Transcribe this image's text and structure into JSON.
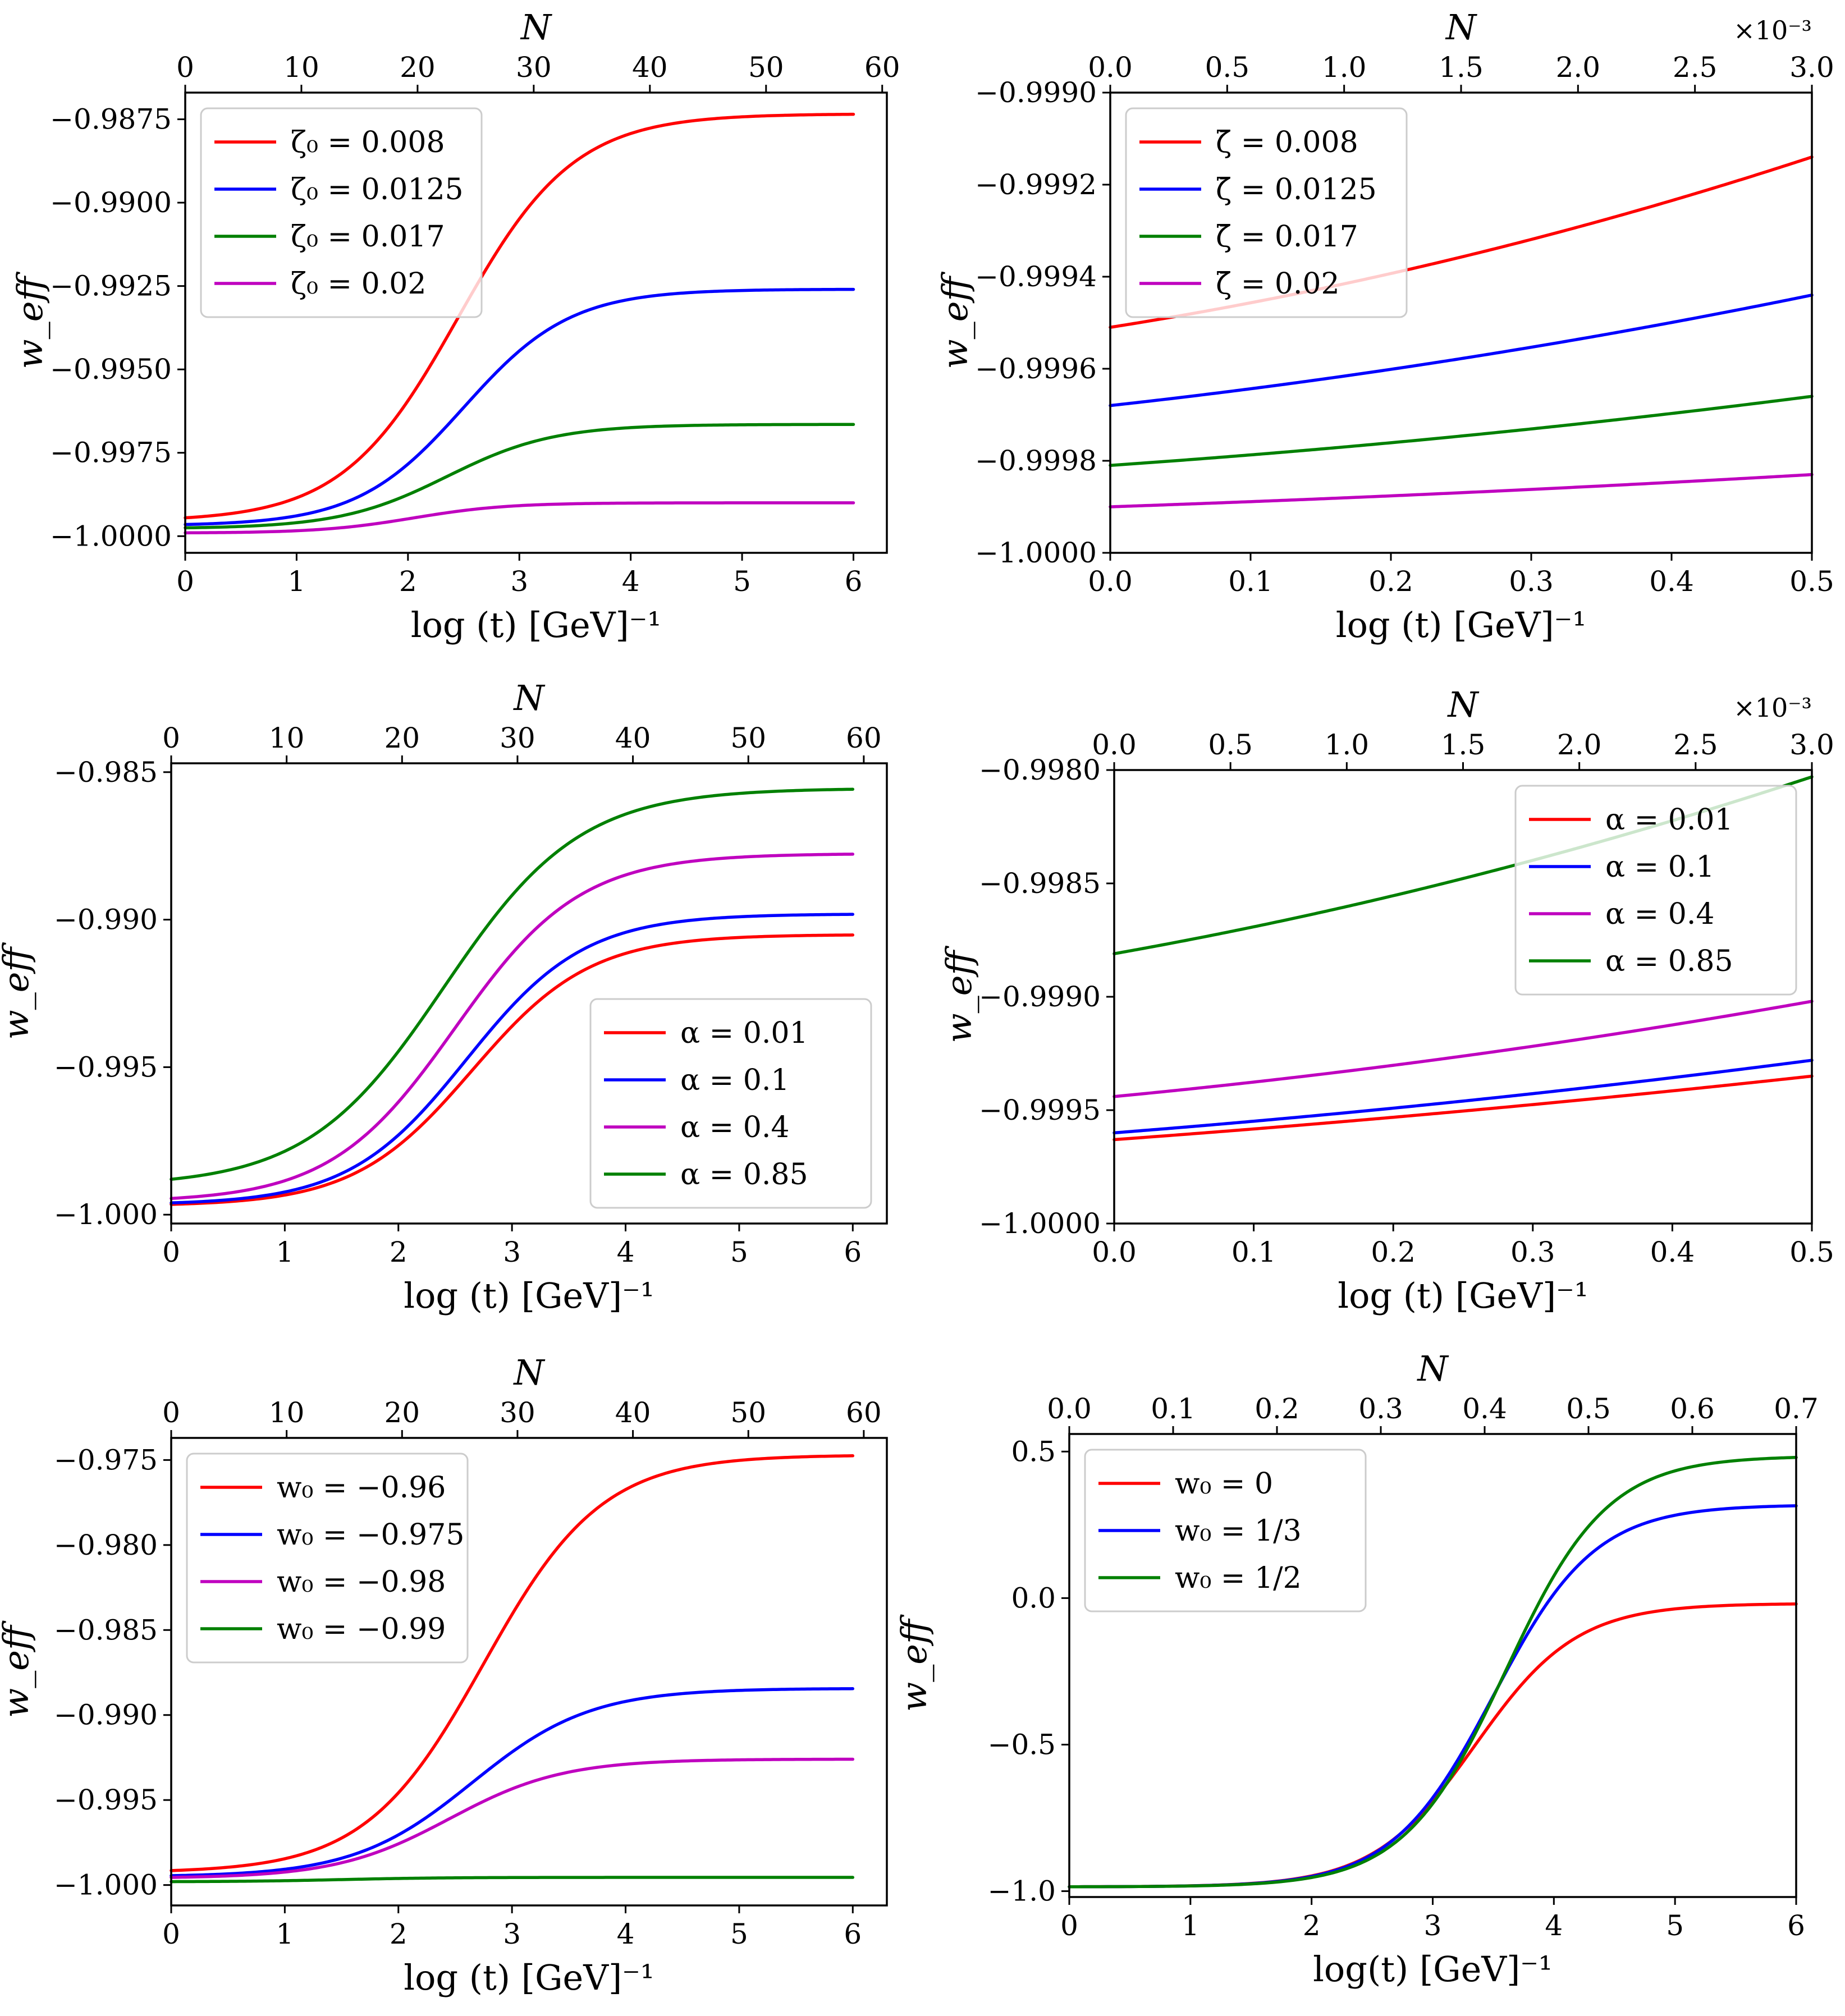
{
  "colors": {
    "red": "#ff0000",
    "blue": "#0000ff",
    "green": "#008000",
    "magenta": "#bf00bf"
  },
  "chart_data": [
    {
      "type": "line",
      "xlabel": "log (t) [GeV]⁻¹",
      "ylabel": "w_eff",
      "top_xlabel": "N",
      "xlim": [
        0,
        6.3
      ],
      "ylim": [
        -1.0005,
        -0.9867
      ],
      "xticks": [
        0,
        1,
        2,
        3,
        4,
        5,
        6
      ],
      "xtick_labels": [
        "0",
        "1",
        "2",
        "3",
        "4",
        "5",
        "6"
      ],
      "yticks": [
        -0.9875,
        -0.99,
        -0.9925,
        -0.995,
        -0.9975,
        -1.0
      ],
      "ytick_labels": [
        "−0.9875",
        "−0.9900",
        "−0.9925",
        "−0.9950",
        "−0.9975",
        "−1.0000"
      ],
      "top_xlim": [
        0,
        60
      ],
      "top_xticks": [
        0,
        10,
        20,
        30,
        40,
        50,
        60
      ],
      "top_xtick_labels": [
        "0",
        "10",
        "20",
        "30",
        "40",
        "50",
        "60"
      ],
      "top_xmax": 60.4,
      "top_sci_label": "",
      "legend_location": "upper-left",
      "series": [
        {
          "name": "ζ₀ = 0.008",
          "color": "red",
          "shape": "sigmoid",
          "y_start": -0.99945,
          "y_end": -0.98735,
          "x_mid": 2.45,
          "x_width": 0.52,
          "x_end": 6.0
        },
        {
          "name": "ζ₀ = 0.0125",
          "color": "blue",
          "shape": "sigmoid",
          "y_start": -0.99965,
          "y_end": -0.9926,
          "x_mid": 2.5,
          "x_width": 0.48,
          "x_end": 6.0
        },
        {
          "name": "ζ₀ = 0.017",
          "color": "green",
          "shape": "sigmoid",
          "y_start": -0.99975,
          "y_end": -0.99665,
          "x_mid": 2.35,
          "x_width": 0.48,
          "x_end": 6.0
        },
        {
          "name": "ζ₀ = 0.02",
          "color": "magenta",
          "shape": "sigmoid",
          "y_start": -0.9999,
          "y_end": -0.999,
          "x_mid": 2.05,
          "x_width": 0.42,
          "x_end": 6.0
        }
      ]
    },
    {
      "type": "line",
      "xlabel": "log (t) [GeV]⁻¹",
      "ylabel": "w_eff",
      "top_xlabel": "N",
      "xlim": [
        0,
        0.5
      ],
      "ylim": [
        -1.0,
        -0.999
      ],
      "xticks": [
        0,
        0.1,
        0.2,
        0.3,
        0.4,
        0.5
      ],
      "xtick_labels": [
        "0.0",
        "0.1",
        "0.2",
        "0.3",
        "0.4",
        "0.5"
      ],
      "yticks": [
        -0.999,
        -0.9992,
        -0.9994,
        -0.9996,
        -0.9998,
        -1.0
      ],
      "ytick_labels": [
        "−0.9990",
        "−0.9992",
        "−0.9994",
        "−0.9996",
        "−0.9998",
        "−1.0000"
      ],
      "top_xlim": [
        0,
        3.0
      ],
      "top_xticks": [
        0,
        0.5,
        1.0,
        1.5,
        2.0,
        2.5,
        3.0
      ],
      "top_xtick_labels": [
        "0.0",
        "0.5",
        "1.0",
        "1.5",
        "2.0",
        "2.5",
        "3.0"
      ],
      "top_xmax": 3.0,
      "top_sci_label": "×10⁻³",
      "legend_location": "upper-left",
      "series": [
        {
          "name": "ζ̄ = 0.008",
          "color": "red",
          "shape": "curve",
          "y_start": -0.99951,
          "y_end": -0.99914,
          "curvature": 0.35,
          "x_end": 0.5
        },
        {
          "name": "ζ̄ = 0.0125",
          "color": "blue",
          "shape": "curve",
          "y_start": -0.99968,
          "y_end": -0.99944,
          "curvature": 0.3,
          "x_end": 0.5
        },
        {
          "name": "ζ̄ = 0.017",
          "color": "green",
          "shape": "curve",
          "y_start": -0.99981,
          "y_end": -0.99966,
          "curvature": 0.3,
          "x_end": 0.5
        },
        {
          "name": "ζ̄ = 0.02",
          "color": "magenta",
          "shape": "curve",
          "y_start": -0.9999,
          "y_end": -0.99983,
          "curvature": 0.25,
          "x_end": 0.5
        }
      ]
    },
    {
      "type": "line",
      "xlabel": "log (t) [GeV]⁻¹",
      "ylabel": "w_eff",
      "top_xlabel": "N",
      "xlim": [
        0,
        6.3
      ],
      "ylim": [
        -1.0003,
        -0.9847
      ],
      "xticks": [
        0,
        1,
        2,
        3,
        4,
        5,
        6
      ],
      "xtick_labels": [
        "0",
        "1",
        "2",
        "3",
        "4",
        "5",
        "6"
      ],
      "yticks": [
        -0.985,
        -0.99,
        -0.995,
        -1.0
      ],
      "ytick_labels": [
        "−0.985",
        "−0.990",
        "−0.995",
        "−1.000"
      ],
      "top_xlim": [
        0,
        60
      ],
      "top_xticks": [
        0,
        10,
        20,
        30,
        40,
        50,
        60
      ],
      "top_xtick_labels": [
        "0",
        "10",
        "20",
        "30",
        "40",
        "50",
        "60"
      ],
      "top_xmax": 62,
      "top_sci_label": "",
      "legend_location": "lower-right",
      "series": [
        {
          "name": "α = 0.01",
          "color": "red",
          "shape": "sigmoid",
          "y_start": -0.99965,
          "y_end": -0.99052,
          "x_mid": 2.65,
          "x_width": 0.52,
          "x_end": 6.0
        },
        {
          "name": "α = 0.1",
          "color": "blue",
          "shape": "sigmoid",
          "y_start": -0.9996,
          "y_end": -0.98982,
          "x_mid": 2.6,
          "x_width": 0.52,
          "x_end": 6.0
        },
        {
          "name": "α = 0.4",
          "color": "magenta",
          "shape": "sigmoid",
          "y_start": -0.99945,
          "y_end": -0.98778,
          "x_mid": 2.5,
          "x_width": 0.55,
          "x_end": 6.0
        },
        {
          "name": "α = 0.85",
          "color": "green",
          "shape": "sigmoid",
          "y_start": -0.9988,
          "y_end": -0.98558,
          "x_mid": 2.4,
          "x_width": 0.6,
          "x_end": 6.0
        }
      ]
    },
    {
      "type": "line",
      "xlabel": "log (t) [GeV]⁻¹",
      "ylabel": "w_eff",
      "top_xlabel": "N",
      "xlim": [
        0,
        0.5
      ],
      "ylim": [
        -1.0,
        -0.998
      ],
      "xticks": [
        0,
        0.1,
        0.2,
        0.3,
        0.4,
        0.5
      ],
      "xtick_labels": [
        "0.0",
        "0.1",
        "0.2",
        "0.3",
        "0.4",
        "0.5"
      ],
      "yticks": [
        -0.998,
        -0.9985,
        -0.999,
        -0.9995,
        -1.0
      ],
      "ytick_labels": [
        "−0.9980",
        "−0.9985",
        "−0.9990",
        "−0.9995",
        "−1.0000"
      ],
      "top_xlim": [
        0,
        3.0
      ],
      "top_xticks": [
        0,
        0.5,
        1.0,
        1.5,
        2.0,
        2.5,
        3.0
      ],
      "top_xtick_labels": [
        "0.0",
        "0.5",
        "1.0",
        "1.5",
        "2.0",
        "2.5",
        "3.0"
      ],
      "top_xmax": 3.0,
      "top_sci_label": "×10⁻³",
      "legend_location": "upper-right",
      "series": [
        {
          "name": "α = 0.01",
          "color": "red",
          "shape": "curve",
          "y_start": -0.99963,
          "y_end": -0.99935,
          "curvature": 0.2,
          "x_end": 0.5
        },
        {
          "name": "α = 0.1",
          "color": "blue",
          "shape": "curve",
          "y_start": -0.9996,
          "y_end": -0.99928,
          "curvature": 0.25,
          "x_end": 0.5
        },
        {
          "name": "α = 0.4",
          "color": "magenta",
          "shape": "curve",
          "y_start": -0.99944,
          "y_end": -0.99902,
          "curvature": 0.3,
          "x_end": 0.5
        },
        {
          "name": "α = 0.85",
          "color": "green",
          "shape": "curve",
          "y_start": -0.99881,
          "y_end": -0.99803,
          "curvature": 0.3,
          "x_end": 0.5
        }
      ]
    },
    {
      "type": "line",
      "xlabel": "log (t) [GeV]⁻¹",
      "ylabel": "w_eff",
      "top_xlabel": "N",
      "xlim": [
        0,
        6.3
      ],
      "ylim": [
        -1.0012,
        -0.9737
      ],
      "xticks": [
        0,
        1,
        2,
        3,
        4,
        5,
        6
      ],
      "xtick_labels": [
        "0",
        "1",
        "2",
        "3",
        "4",
        "5",
        "6"
      ],
      "yticks": [
        -0.975,
        -0.98,
        -0.985,
        -0.99,
        -0.995,
        -1.0
      ],
      "ytick_labels": [
        "−0.975",
        "−0.980",
        "−0.985",
        "−0.990",
        "−0.995",
        "−1.000"
      ],
      "top_xlim": [
        0,
        60
      ],
      "top_xticks": [
        0,
        10,
        20,
        30,
        40,
        50,
        60
      ],
      "top_xtick_labels": [
        "0",
        "10",
        "20",
        "30",
        "40",
        "50",
        "60"
      ],
      "top_xmax": 62,
      "top_sci_label": "",
      "legend_location": "upper-left",
      "series": [
        {
          "name": "w₀ = −0.96",
          "color": "red",
          "shape": "sigmoid",
          "y_start": -0.99915,
          "y_end": -0.97475,
          "x_mid": 2.75,
          "x_width": 0.52,
          "x_end": 6.0
        },
        {
          "name": "w₀ = −0.975",
          "color": "blue",
          "shape": "sigmoid",
          "y_start": -0.99945,
          "y_end": -0.98845,
          "x_mid": 2.65,
          "x_width": 0.52,
          "x_end": 6.0
        },
        {
          "name": "w₀ = −0.98",
          "color": "magenta",
          "shape": "sigmoid",
          "y_start": -0.99955,
          "y_end": -0.9926,
          "x_mid": 2.45,
          "x_width": 0.5,
          "x_end": 6.0
        },
        {
          "name": "w₀ = −0.99",
          "color": "green",
          "shape": "sigmoid",
          "y_start": -0.9998,
          "y_end": -0.99955,
          "x_mid": 1.5,
          "x_width": 0.45,
          "x_end": 6.0
        }
      ]
    },
    {
      "type": "line",
      "xlabel": "log(t) [GeV]⁻¹",
      "ylabel": "w_eff",
      "top_xlabel": "N",
      "xlim": [
        0,
        6.0
      ],
      "ylim": [
        -1.02,
        0.56
      ],
      "xticks": [
        0,
        1,
        2,
        3,
        4,
        5,
        6
      ],
      "xtick_labels": [
        "0",
        "1",
        "2",
        "3",
        "4",
        "5",
        "6"
      ],
      "yticks": [
        0.5,
        0.0,
        -0.5,
        -1.0
      ],
      "ytick_labels": [
        "0.5",
        "0.0",
        "−0.5",
        "−1.0"
      ],
      "top_xlim": [
        0,
        0.7
      ],
      "top_xticks": [
        0,
        0.1,
        0.2,
        0.3,
        0.4,
        0.5,
        0.6,
        0.7
      ],
      "top_xtick_labels": [
        "0.0",
        "0.1",
        "0.2",
        "0.3",
        "0.4",
        "0.5",
        "0.6",
        "0.7"
      ],
      "top_xmax": 0.7,
      "top_sci_label": "",
      "legend_location": "upper-left",
      "series": [
        {
          "name": "w₀ = 0",
          "color": "red",
          "shape": "sigmoid",
          "y_start": -0.985,
          "y_end": -0.02,
          "x_mid": 3.35,
          "x_width": 0.42,
          "x_end": 6.0
        },
        {
          "name": "w₀ = 1/3",
          "color": "blue",
          "shape": "sigmoid",
          "y_start": -0.985,
          "y_end": 0.315,
          "x_mid": 3.5,
          "x_width": 0.42,
          "x_end": 6.0
        },
        {
          "name": "w₀ = 1/2",
          "color": "green",
          "shape": "sigmoid",
          "y_start": -0.985,
          "y_end": 0.48,
          "x_mid": 3.6,
          "x_width": 0.42,
          "x_end": 6.0
        }
      ]
    }
  ]
}
